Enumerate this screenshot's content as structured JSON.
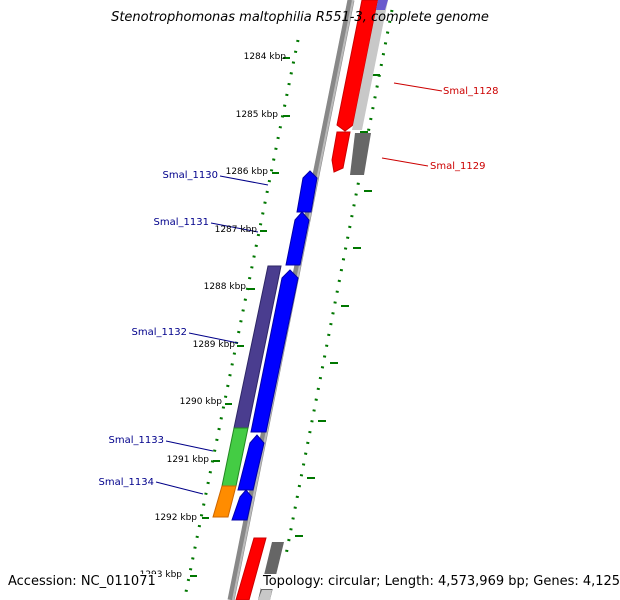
{
  "title": "Stenotrophomonas maltophilia R551-3, complete genome",
  "accession": "Accession: NC_011071",
  "summary": "Topology: circular; Length: 4,573,969 bp; Genes: 4,125",
  "scale_labels": [
    "1284 kbp",
    "1285 kbp",
    "1286 kbp",
    "1287 kbp",
    "1288 kbp",
    "1289 kbp",
    "1290 kbp",
    "1291 kbp",
    "1292 kbp",
    "1293 kbp"
  ],
  "gene_labels": {
    "smal_1128": "Smal_1128",
    "smal_1129": "Smal_1129",
    "smal_1130": "Smal_1130",
    "smal_1131": "Smal_1131",
    "smal_1132": "Smal_1132",
    "smal_1133": "Smal_1133",
    "smal_1134": "Smal_1134"
  },
  "colors": {
    "forward_gene": "#0000ff",
    "reverse_gene": "#ff0000",
    "label_forward": "#00008b",
    "label_reverse": "#cc0000",
    "ruler_ticks": "#007700",
    "backbone": "#888888",
    "purple_gene": "#4a3d8f",
    "green_gene": "#44cc44",
    "orange_gene": "#ff8c00",
    "grey_gene": "#666666",
    "light_grey_gene": "#c0c0c0"
  }
}
